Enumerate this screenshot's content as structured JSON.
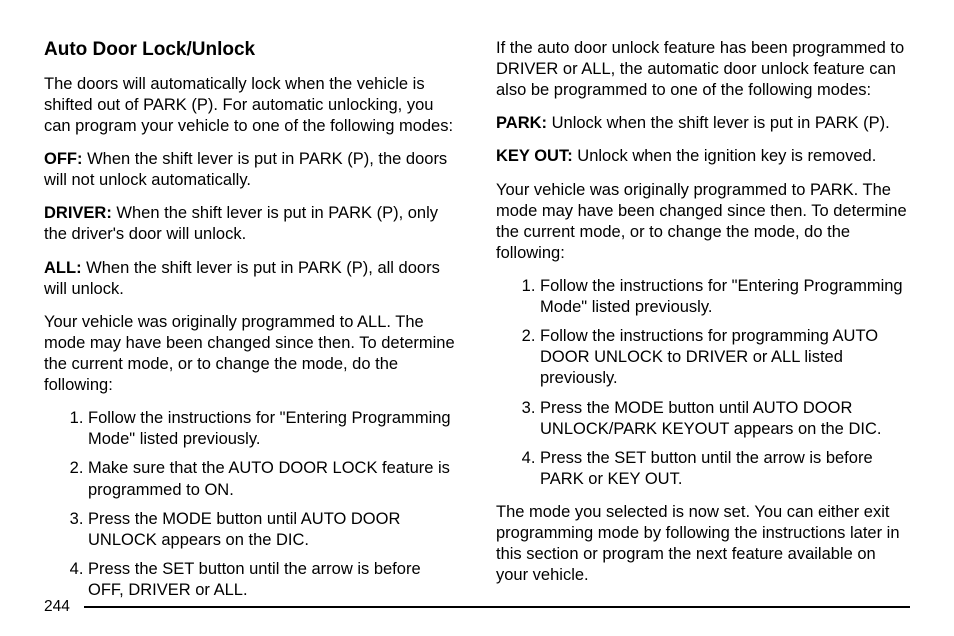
{
  "page_number": "244",
  "left": {
    "heading": "Auto Door Lock/Unlock",
    "p1": "The doors will automatically lock when the vehicle is shifted out of PARK (P). For automatic unlocking, you can program your vehicle to one of the following modes:",
    "off_label": "OFF:",
    "off_text": "  When the shift lever is put in PARK (P), the doors will not unlock automatically.",
    "driver_label": "DRIVER:",
    "driver_text": "  When the shift lever is put in PARK (P), only the driver's door will unlock.",
    "all_label": "ALL:",
    "all_text": "  When the shift lever is put in PARK (P), all doors will unlock.",
    "p2": "Your vehicle was originally programmed to ALL. The mode may have been changed since then. To determine the current mode, or to change the mode, do the following:",
    "steps": [
      "Follow the instructions for \"Entering Programming Mode\" listed previously.",
      "Make sure that the AUTO DOOR LOCK feature is programmed to ON.",
      "Press the MODE button until AUTO DOOR UNLOCK appears on the DIC.",
      "Press the SET button until the arrow is before OFF, DRIVER or ALL."
    ]
  },
  "right": {
    "p1": "If the auto door unlock feature has been programmed to DRIVER or ALL, the automatic door unlock feature can also be programmed to one of the following modes:",
    "park_label": "PARK:",
    "park_text": "  Unlock when the shift lever is put in PARK (P).",
    "keyout_label": "KEY OUT:",
    "keyout_text": "  Unlock when the ignition key is removed.",
    "p2": "Your vehicle was originally programmed to PARK. The mode may have been changed since then. To determine the current mode, or to change the mode, do the following:",
    "steps": [
      "Follow the instructions for \"Entering Programming Mode\" listed previously.",
      "Follow the instructions for programming AUTO DOOR UNLOCK to DRIVER or ALL listed previously.",
      "Press the MODE button until AUTO DOOR UNLOCK/PARK KEYOUT appears on the DIC.",
      "Press the SET button until the arrow is before PARK or KEY OUT."
    ],
    "p3": "The mode you selected is now set. You can either exit programming mode by following the instructions later in this section or program the next feature available on your vehicle."
  }
}
